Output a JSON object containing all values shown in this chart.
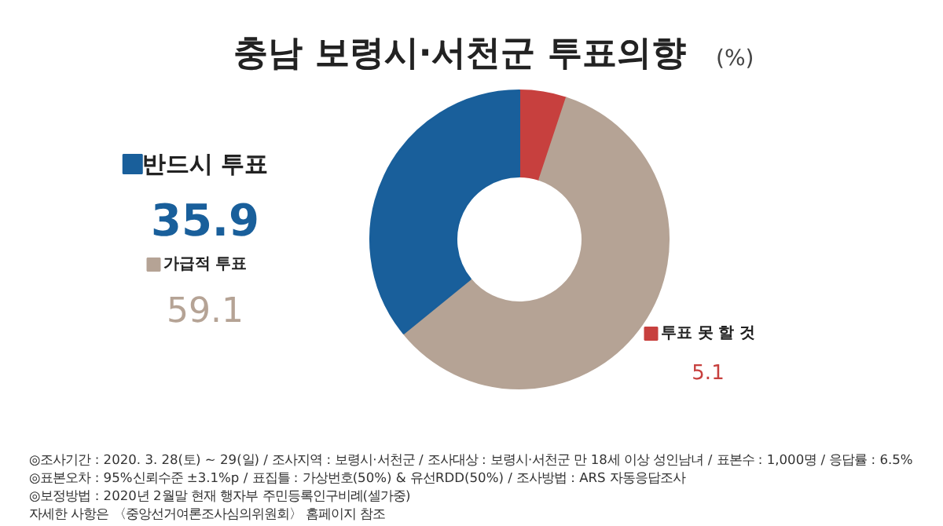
{
  "chart_data": {
    "type": "donut",
    "title": "충남 보령시·서천군 투표의향",
    "subtitle": "(%)",
    "categories": [
      "투표 못 할 것",
      "가급적 투표",
      "반드시 투표"
    ],
    "values": [
      5.1,
      59.1,
      35.9
    ],
    "colors": [
      "#c7403e",
      "#b5a395",
      "#195f9b"
    ],
    "data_labels": true,
    "legend": "left",
    "annotations": [
      "◎조사기간 : 2020. 3. 28(토) ~ 29(일) / 조사지역 : 보령시·서천군 / 조사대상 : 보령시·서천군 만 18세 이상 성인남녀 / 표본수 : 1,000명 / 응답률 : 6.5%",
      "◎표본오차 : 95%신뢰수준 ±3.1%p / 표집틀 : 가상번호(50%) & 유선RDD(50%) / 조사방법 : ARS 자동응답조사",
      "◎보정방법 : 2020년 2월말 현재 행자부 주민등록인구비례(셀가중)",
      "자세한 사항은 〈중앙선거여론조사심의위원회〉 홈페이지 참조"
    ]
  }
}
